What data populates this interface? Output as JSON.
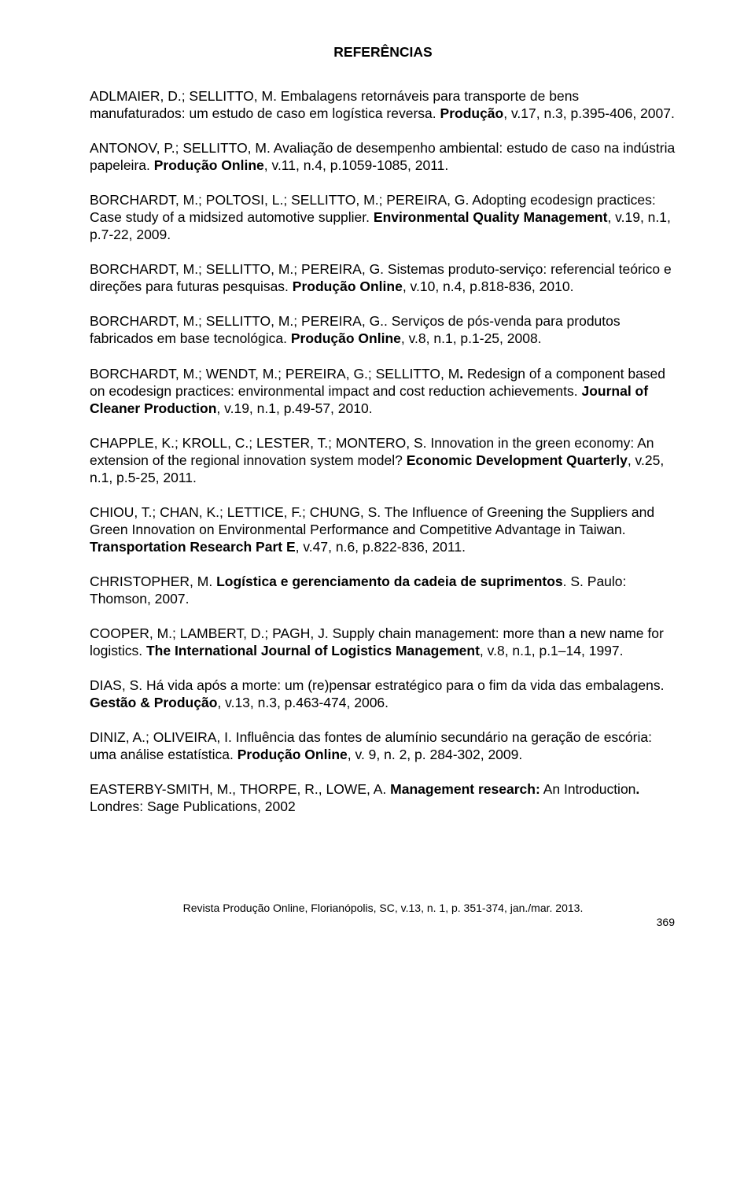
{
  "title": "REFERÊNCIAS",
  "refs": [
    {
      "html": "ADLMAIER, D.; SELLITTO, M. Embalagens retornáveis para transporte de bens manufaturados: um estudo de caso em logística reversa. <b>Produção</b>, v.17, n.3, p.395-406, 2007."
    },
    {
      "html": "ANTONOV, P.; SELLITTO, M. Avaliação de desempenho ambiental: estudo de caso na indústria papeleira. <b>Produção Online</b>, v.11, n.4, p.1059-1085, 2011."
    },
    {
      "html": "BORCHARDT, M.; POLTOSI, L.; SELLITTO, M.; PEREIRA, G. Adopting ecodesign practices: Case study of a midsized automotive supplier. <b>Environmental Quality Management</b>, v.19, n.1, p.7-22, 2009."
    },
    {
      "html": "BORCHARDT, M.; SELLITTO, M.; PEREIRA, G. Sistemas produto-serviço: referencial teórico e direções para futuras pesquisas. <b>Produção Online</b>, v.10, n.4, p.818-836, 2010."
    },
    {
      "html": "BORCHARDT, M.; SELLITTO, M.; PEREIRA, G.. Serviços de pós-venda para produtos fabricados em base tecnológica. <b>Produção Online</b>, v.8, n.1, p.1-25, 2008."
    },
    {
      "html": "BORCHARDT, M.; WENDT, M.; PEREIRA, G.; SELLITTO, M<b>.</b> Redesign of a component based on ecodesign practices: environmental impact and cost reduction achievements. <b>Journal of Cleaner Production</b>, v.19, n.1, p.49-57, 2010."
    },
    {
      "html": "CHAPPLE, K.; KROLL, C.; LESTER, T.; MONTERO, S. Innovation in the green economy: An extension of the regional innovation system model? <b>Economic Development Quarterly</b>, v.25, n.1, p.5-25, 2011."
    },
    {
      "html": "CHIOU, T.; CHAN, K.; LETTICE, F.; CHUNG, S. The Influence of Greening the Suppliers and Green Innovation on Environmental Performance and Competitive Advantage in Taiwan. <b>Transportation Research Part E</b>, v.47, n.6, p.822-836, 2011."
    },
    {
      "html": "CHRISTOPHER, M. <b>Logística e gerenciamento da cadeia de suprimentos</b>. S. Paulo: Thomson, 2007."
    },
    {
      "html": "COOPER, M.; LAMBERT, D.; PAGH, J. Supply chain management: more than a new name for logistics. <b>The International Journal of Logistics Management</b>, v.8, n.1, p.1–14, 1997."
    },
    {
      "html": "DIAS, S. Há vida após a morte: um (re)pensar estratégico para o fim da vida das embalagens. <b>Gestão & Produção</b>, v.13, n.3, p.463-474, 2006."
    },
    {
      "html": "DINIZ, A.; OLIVEIRA, I. Influência das fontes de alumínio secundário na geração de escória: uma análise estatística. <b>Produção Online</b>, v. 9, n. 2, p. 284-302, 2009."
    },
    {
      "html": "EASTERBY-SMITH, M., THORPE, R., LOWE, A. <b>Management research:</b> An Introduction<b>.</b> Londres: Sage Publications, 2002"
    }
  ],
  "footer": {
    "journal": "Revista Produção Online, Florianópolis, SC, v.13, n. 1, p. 351-374, jan./mar. 2013.",
    "page": "369"
  }
}
